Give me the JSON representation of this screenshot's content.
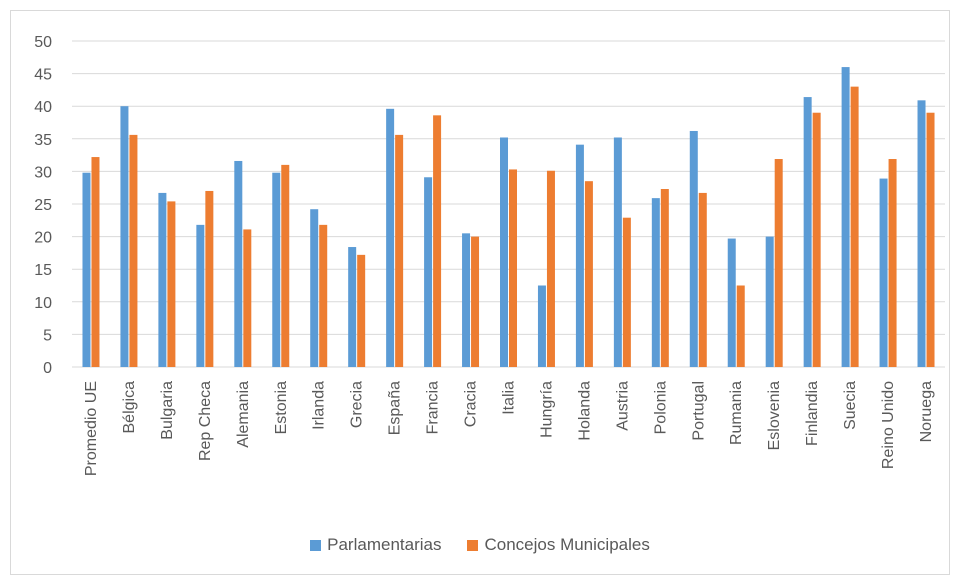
{
  "colors": {
    "series1": "#5B9BD5",
    "series2": "#ED7D31",
    "grid": "#d9d9d9",
    "text": "#595959"
  },
  "chart_data": {
    "type": "bar",
    "categories": [
      "Promedio UE",
      "Bélgica",
      "Bulgaria",
      "Rep Checa",
      "Alemania",
      "Estonia",
      "Irlanda",
      "Grecia",
      "España",
      "Francia",
      "Cracia",
      "Italia",
      "Hungría",
      "Holanda",
      "Austria",
      "Polonia",
      "Portugal",
      "Rumania",
      "Eslovenia",
      "Finlandia",
      "Suecia",
      "Reino Unido",
      "Noruega"
    ],
    "series": [
      {
        "name": "Parlamentarias",
        "values": [
          29.8,
          40,
          26.7,
          21.8,
          31.6,
          29.8,
          24.2,
          18.4,
          39.6,
          29.1,
          20.5,
          35.2,
          12.5,
          34.1,
          35.2,
          25.9,
          36.2,
          19.7,
          20,
          41.4,
          46,
          28.9,
          40.9
        ]
      },
      {
        "name": "Concejos Municipales",
        "values": [
          32.2,
          35.6,
          25.4,
          27,
          21.1,
          31,
          21.8,
          17.2,
          35.6,
          38.6,
          20,
          30.3,
          30.1,
          28.5,
          22.9,
          27.3,
          26.7,
          12.5,
          31.9,
          39,
          43,
          31.9,
          39
        ]
      }
    ],
    "ylim": [
      0,
      50
    ],
    "yticks": [
      "0",
      "5",
      "10",
      "15",
      "20",
      "25",
      "30",
      "35",
      "40",
      "45",
      "50"
    ],
    "grid": true,
    "legend": "bottom"
  }
}
